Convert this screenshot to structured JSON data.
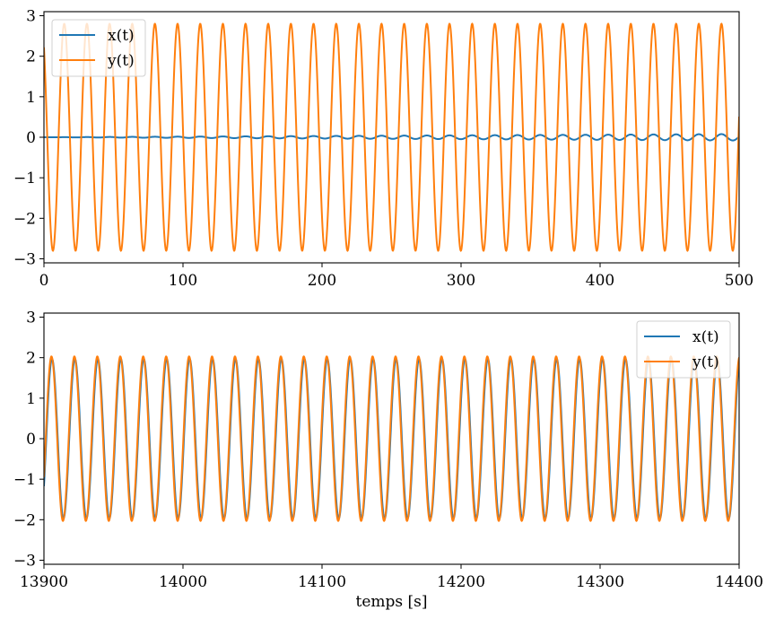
{
  "chart_data": [
    {
      "type": "line",
      "xlim": [
        0,
        500
      ],
      "ylim": [
        -3.1,
        3.1
      ],
      "xticks": [
        "0",
        "100",
        "200",
        "300",
        "400",
        "500"
      ],
      "yticks": [
        "3",
        "2",
        "1",
        "0",
        "−1",
        "−2",
        "−3"
      ],
      "xlabel": "",
      "legend": "top-left",
      "series": [
        {
          "name": "x(t)",
          "color": "#1f77b4",
          "form": "sinusoid",
          "amplitude_start": 0.0,
          "amplitude_end": 0.08,
          "period": 16.3,
          "peak_time": 79.8
        },
        {
          "name": "y(t)",
          "color": "#ff7f0e",
          "form": "sinusoid",
          "amplitude_start": 2.8,
          "amplitude_end": 2.8,
          "period": 16.3,
          "peak_time": 79.8
        }
      ]
    },
    {
      "type": "line",
      "xlim": [
        13900,
        14400
      ],
      "ylim": [
        -3.1,
        3.1
      ],
      "xticks": [
        "13900",
        "14000",
        "14100",
        "14200",
        "14300",
        "14400"
      ],
      "yticks": [
        "3",
        "2",
        "1",
        "0",
        "−1",
        "−2",
        "−3"
      ],
      "xlabel": "temps [s]",
      "legend": "top-right",
      "series": [
        {
          "name": "x(t)",
          "color": "#1f77b4",
          "form": "sinusoid",
          "amplitude_start": 1.97,
          "amplitude_end": 1.97,
          "period": 16.5,
          "peak_time": 13905.8
        },
        {
          "name": "y(t)",
          "color": "#ff7f0e",
          "form": "sinusoid",
          "amplitude_start": 2.03,
          "amplitude_end": 2.03,
          "period": 16.5,
          "peak_time": 13905.4
        }
      ]
    }
  ]
}
